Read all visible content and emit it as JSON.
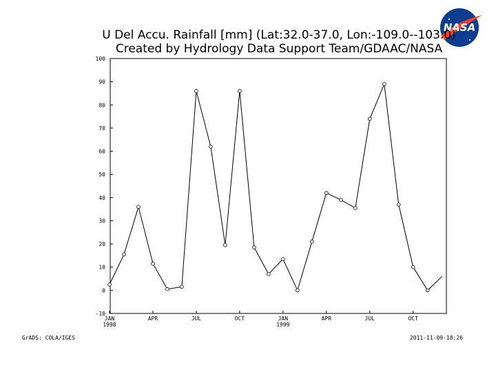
{
  "logo": {
    "text": "NASA",
    "color": "#0b3d91",
    "accent": "#fc3d21"
  },
  "footer": {
    "left": "GrADS: COLA/IGES",
    "right": "2011-11-09-18:26"
  },
  "chart_data": {
    "type": "line",
    "title": "U Del Accu. Rainfall [mm] (Lat:32.0-37.0, Lon:-109.0--103.0)",
    "subtitle": "Created by Hydrology Data Support Team/GDAAC/NASA",
    "xlabel": "",
    "ylabel": "",
    "ylim": [
      -10,
      100
    ],
    "yticks": [
      -10,
      0,
      10,
      20,
      30,
      40,
      50,
      60,
      70,
      80,
      90,
      100
    ],
    "xlim": [
      0,
      23.3
    ],
    "xticks": [
      {
        "pos": 0,
        "label": "JAN",
        "label2": "1998"
      },
      {
        "pos": 3,
        "label": "APR",
        "label2": ""
      },
      {
        "pos": 6,
        "label": "JUL",
        "label2": ""
      },
      {
        "pos": 9,
        "label": "OCT",
        "label2": ""
      },
      {
        "pos": 12,
        "label": "JAN",
        "label2": "1999"
      },
      {
        "pos": 15,
        "label": "APR",
        "label2": ""
      },
      {
        "pos": 18,
        "label": "JUL",
        "label2": ""
      },
      {
        "pos": 21,
        "label": "OCT",
        "label2": ""
      }
    ],
    "grid": false,
    "series": [
      {
        "name": "",
        "x": [
          0,
          1,
          2,
          3,
          4,
          5,
          6,
          7,
          8,
          9,
          10,
          11,
          12,
          13,
          14,
          15,
          16,
          17,
          18,
          19,
          20,
          21,
          22,
          23
        ],
        "values": [
          2.5,
          15.5,
          36,
          11.5,
          0.5,
          1.5,
          86,
          62,
          19.5,
          86,
          18.5,
          7,
          13.5,
          0,
          21,
          42,
          39,
          35.5,
          74,
          89,
          37,
          10,
          0,
          6
        ]
      }
    ]
  }
}
